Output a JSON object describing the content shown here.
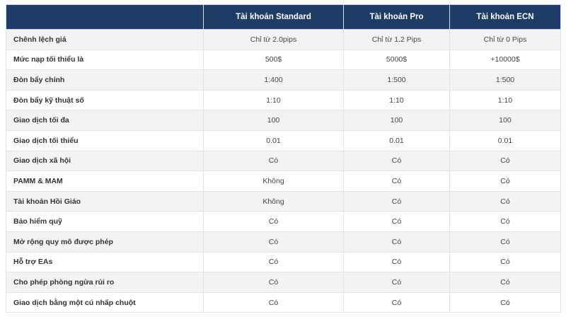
{
  "table": {
    "header": [
      "Tài khoản Standard",
      "Tài khoản Pro",
      "Tài khoản ECN"
    ],
    "rows": [
      [
        "Chênh lệch giá",
        "Chỉ từ 2.0pips",
        "Chỉ từ 1.2 Pips",
        "Chỉ từ 0 Pips"
      ],
      [
        "Mức nạp tối thiểu là",
        "500$",
        "5000$",
        "+10000$"
      ],
      [
        "Đòn bẩy chính",
        "1:400",
        "1:500",
        "1:500"
      ],
      [
        "Đòn bẩy kỹ thuật số",
        "1:10",
        "1:10",
        "1:10"
      ],
      [
        "Giao dịch tối đa",
        "100",
        "100",
        "100"
      ],
      [
        "Giao dịch tối thiểu",
        "0.01",
        "0.01",
        "0.01"
      ],
      [
        "Giao dịch xã hội",
        "Có",
        "Có",
        "Có"
      ],
      [
        "PAMM & MAM",
        "Không",
        "Có",
        "Có"
      ],
      [
        "Tài khoản Hồi Giáo",
        "Không",
        "Có",
        "Có"
      ],
      [
        "Bảo hiểm quỹ",
        "Có",
        "Có",
        "Có"
      ],
      [
        "Mở rộng quy mô được phép",
        "Có",
        "Có",
        "Có"
      ],
      [
        "Hỗ trợ EAs",
        "Có",
        "Có",
        "Có"
      ],
      [
        "Cho phép phòng ngừa rủi ro",
        "Có",
        "Có",
        "Có"
      ],
      [
        "Giao dịch bằng một cú nhấp chuột",
        "Có",
        "Có",
        "Có"
      ]
    ]
  }
}
